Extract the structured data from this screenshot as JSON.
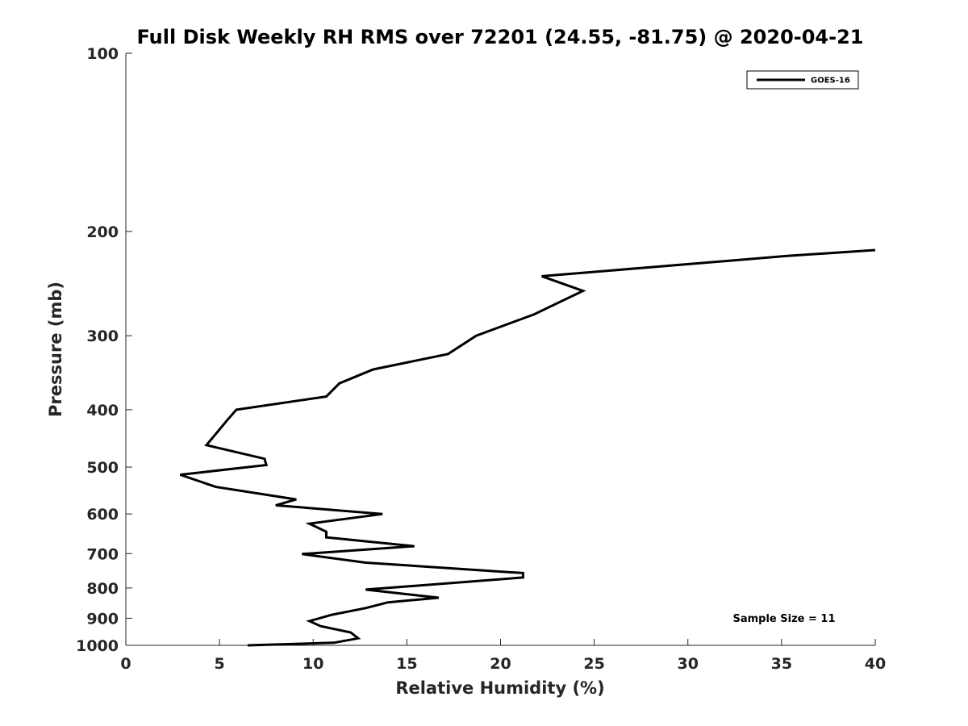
{
  "chart_data": {
    "type": "line",
    "title": "Full Disk Weekly RH RMS over 72201 (24.55, -81.75) @ 2020-04-21",
    "xlabel": "Relative Humidity (%)",
    "ylabel": "Pressure (mb)",
    "xlim": [
      0,
      40
    ],
    "ylim": [
      100,
      1000
    ],
    "yscale": "log",
    "y_reversed": true,
    "grid": false,
    "legend_location": "top-right",
    "x_ticks": [
      0,
      5,
      10,
      15,
      20,
      25,
      30,
      35,
      40
    ],
    "y_ticks": [
      100,
      200,
      300,
      400,
      500,
      600,
      700,
      800,
      900,
      1000
    ],
    "series": [
      {
        "name": "GOES-16",
        "color": "#000000",
        "x": [
          40.0,
          35.3,
          22.2,
          24.4,
          21.8,
          18.7,
          17.2,
          13.2,
          11.4,
          10.7,
          5.9,
          5.4,
          5.0,
          4.3,
          7.4,
          7.5,
          2.9,
          4.8,
          9.1,
          8.0,
          13.7,
          9.8,
          10.7,
          10.7,
          15.4,
          9.4,
          12.8,
          21.2,
          21.2,
          12.8,
          16.7,
          14.0,
          12.8,
          11.0,
          9.8,
          10.4,
          12.0,
          12.4,
          11.1,
          6.5
        ],
        "y": [
          215,
          220,
          238,
          252,
          276,
          300,
          322,
          342,
          361,
          380,
          400,
          417,
          432,
          459,
          484,
          496,
          515,
          540,
          567,
          580,
          600,
          623,
          643,
          657,
          680,
          701,
          725,
          755,
          768,
          805,
          831,
          846,
          865,
          888,
          910,
          928,
          951,
          973,
          990,
          1000
        ]
      }
    ],
    "annotations": [
      "Sample Size = 11"
    ]
  }
}
